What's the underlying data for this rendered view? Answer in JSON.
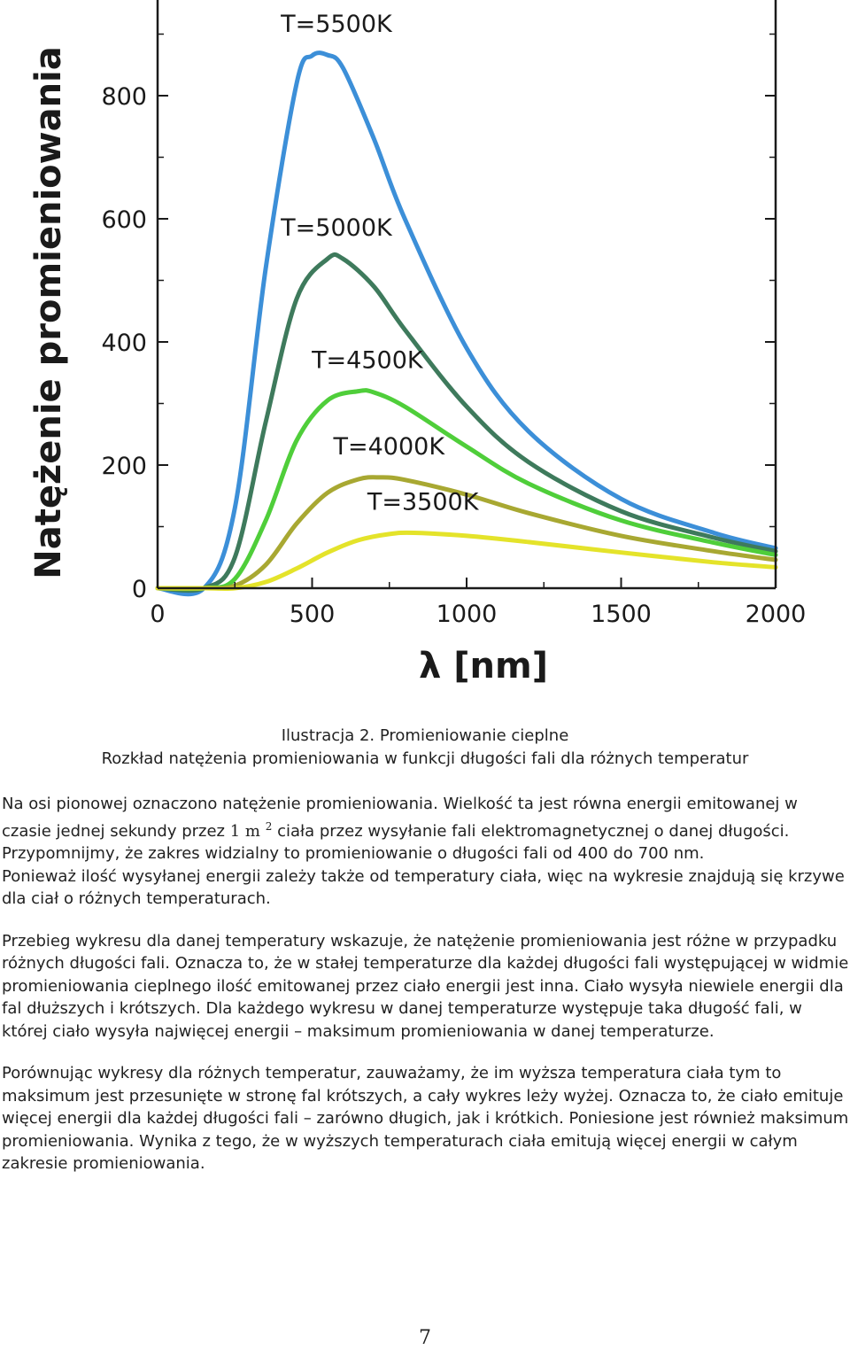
{
  "chart_data": {
    "type": "line",
    "xlabel": "λ [nm]",
    "ylabel": "Natężenie promieniowania",
    "xlim": [
      0,
      2000
    ],
    "ylim": [
      0,
      800
    ],
    "x_ticks": [
      "0",
      "500",
      "1000",
      "1500",
      "2000"
    ],
    "y_ticks": [
      "0",
      "200",
      "400",
      "600",
      "800"
    ],
    "grid": false,
    "legend": "inline labels above each curve",
    "series": [
      {
        "name": "T=5500K",
        "color": "#3c8fd8",
        "x": [
          150,
          250,
          350,
          450,
          500,
          550,
          600,
          700,
          800,
          1000,
          1200,
          1500,
          1800,
          2000
        ],
        "y": [
          0,
          130,
          520,
          820,
          865,
          866,
          845,
          730,
          600,
          390,
          255,
          145,
          90,
          65
        ]
      },
      {
        "name": "T=5000K",
        "color": "#3e7a5c",
        "x": [
          150,
          250,
          350,
          450,
          550,
          600,
          700,
          800,
          1000,
          1200,
          1500,
          1800,
          2000
        ],
        "y": [
          0,
          50,
          270,
          470,
          535,
          535,
          490,
          420,
          295,
          205,
          125,
          82,
          60
        ]
      },
      {
        "name": "T=4500K",
        "color": "#4fce3a",
        "x": [
          150,
          250,
          350,
          450,
          550,
          650,
          700,
          800,
          1000,
          1200,
          1500,
          1800,
          2000
        ],
        "y": [
          0,
          15,
          110,
          240,
          305,
          320,
          318,
          295,
          230,
          170,
          110,
          74,
          54
        ]
      },
      {
        "name": "T=4000K",
        "color": "#a8a832",
        "x": [
          150,
          250,
          350,
          450,
          550,
          650,
          720,
          800,
          1000,
          1200,
          1500,
          1800,
          2000
        ],
        "y": [
          0,
          4,
          38,
          105,
          155,
          177,
          180,
          176,
          152,
          122,
          85,
          60,
          46
        ]
      },
      {
        "name": "T=3500K",
        "color": "#e4e32a",
        "x": [
          150,
          250,
          350,
          450,
          550,
          650,
          750,
          830,
          1000,
          1200,
          1500,
          1800,
          2000
        ],
        "y": [
          0,
          0,
          10,
          32,
          58,
          78,
          88,
          90,
          85,
          75,
          58,
          42,
          34
        ]
      }
    ]
  },
  "caption": {
    "line1": "Ilustracja 2. Promieniowanie cieplne",
    "line2": "Rozkład natężenia promieniowania w funkcji długości fali dla różnych temperatur"
  },
  "paragraphs": {
    "p1_part1": "Na osi pionowej oznaczono natężenie promieniowania. Wielkość ta jest równa energii emitowanej w czasie jednej sekundy przez ",
    "p1_unit": "1 m",
    "p1_exp": "2",
    "p1_part2": " ciała przez wysyłanie fali elektromagnetycznej o danej długości. Przypomnijmy, że zakres widzialny to promieniowanie o długości fali od 400 do 700 nm.",
    "p1_part3": "Ponieważ ilość wysyłanej energii zależy także od temperatury ciała, więc na wykresie znajdują się krzywe dla ciał o różnych temperaturach.",
    "p2": "Przebieg wykresu dla danej temperatury wskazuje, że natężenie promieniowania jest różne w przypadku różnych długości fali. Oznacza to, że w stałej temperaturze dla każdej długości fali występującej w widmie promieniowania cieplnego ilość emitowanej przez ciało energii jest inna. Ciało wysyła niewiele energii dla fal dłuższych i krótszych. Dla każdego wykresu w danej temperaturze występuje taka długość fali, w której ciało wysyła najwięcej energii – maksimum promieniowania w danej temperaturze.",
    "p3": "Porównując wykresy dla różnych temperatur, zauważamy, że im wyższa temperatura ciała tym to maksimum jest przesunięte w stronę fal krótszych, a cały wykres leży wyżej. Oznacza to, że ciało emituje więcej energii dla każdej długości fali – zarówno długich, jak i krótkich. Poniesione jest również maksimum promieniowania. Wynika z tego, że w wyższych temperaturach ciała emitują więcej energii w całym zakresie promieniowania."
  },
  "page_number": "7"
}
